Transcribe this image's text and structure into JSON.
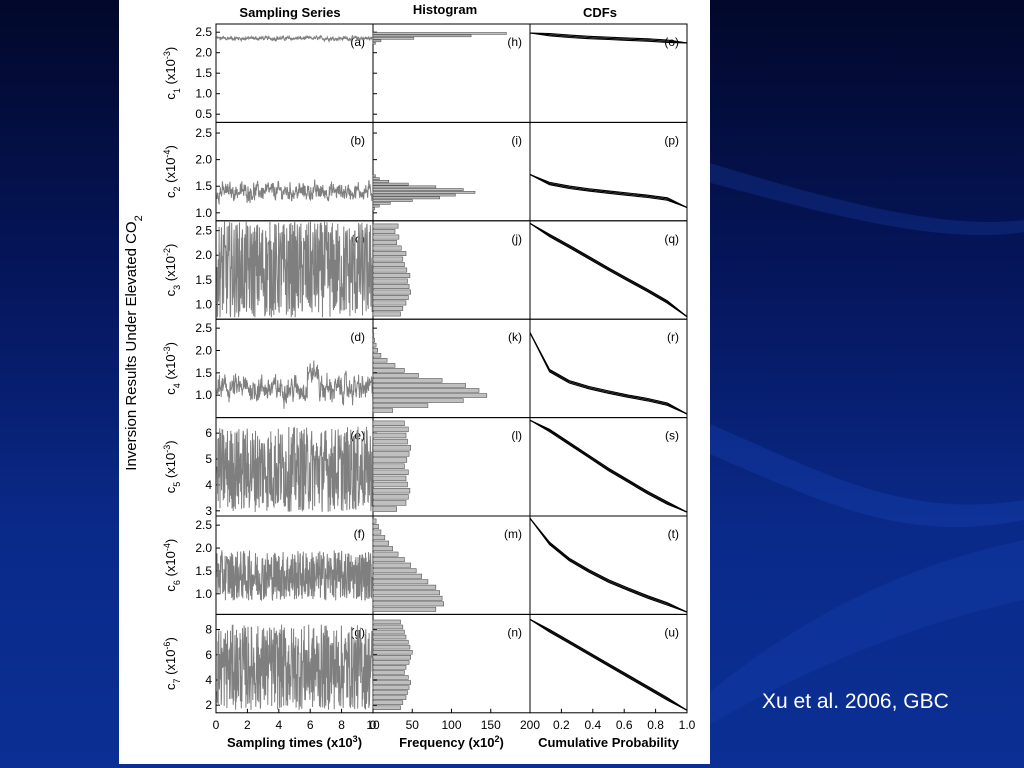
{
  "caption": "Xu et al. 2006, GBC",
  "colors": {
    "background": "#0a2a8a",
    "figure": "#ffffff",
    "trace": "#7f7f7f",
    "bar": "#bfbfbf"
  },
  "chart_data": {
    "type": "panel-grid",
    "column_titles": [
      "Sampling Series",
      "Histogram",
      "CDFs"
    ],
    "row_axis_title": "Inversion Results Under Elevated CO2",
    "x_axes": [
      {
        "label": "Sampling times (x10^3)",
        "ticks": [
          "0",
          "2",
          "4",
          "6",
          "8",
          "10"
        ],
        "range": [
          0,
          10
        ]
      },
      {
        "label": "Frequency (x10^2)",
        "ticks": [
          "0",
          "50",
          "100",
          "150",
          "200"
        ],
        "range": [
          0,
          200
        ]
      },
      {
        "label": "Cumulative Probability",
        "ticks": [
          "0.2",
          "0.4",
          "0.6",
          "0.8",
          "1.0"
        ],
        "range": [
          0,
          1
        ]
      }
    ],
    "rows": [
      {
        "param": "c1",
        "exp": "-3",
        "ylim": [
          0.3,
          2.7
        ],
        "ticks": [
          "0.5",
          "1.0",
          "1.5",
          "2.0",
          "2.5"
        ],
        "letters": [
          "(a)",
          "(h)",
          "(o)"
        ],
        "series_center": 2.35,
        "series_spread": 0.05,
        "hist_values": [
          3,
          10,
          52,
          125,
          170
        ],
        "hist_range": [
          2.2,
          2.5
        ],
        "cdf_y": [
          2.48,
          2.44,
          2.4,
          2.37,
          2.35,
          2.33,
          2.31,
          2.28,
          2.24
        ]
      },
      {
        "param": "c2",
        "exp": "-4",
        "ylim": [
          0.85,
          2.7
        ],
        "ticks": [
          "1.0",
          "1.5",
          "2.0",
          "2.5"
        ],
        "letters": [
          "(b)",
          "(i)",
          "(p)"
        ],
        "series_center": 1.4,
        "series_spread": 0.16,
        "hist_values": [
          2,
          8,
          22,
          50,
          85,
          105,
          130,
          115,
          80,
          45,
          20,
          8,
          3
        ],
        "hist_range": [
          1.05,
          1.72
        ],
        "cdf_y": [
          1.72,
          1.55,
          1.48,
          1.43,
          1.39,
          1.35,
          1.31,
          1.26,
          1.1
        ]
      },
      {
        "param": "c3",
        "exp": "-2",
        "ylim": [
          0.7,
          2.7
        ],
        "ticks": [
          "1.0",
          "1.5",
          "2.0",
          "2.5"
        ],
        "letters": [
          "(c)",
          "(j)",
          "(q)"
        ],
        "series_center": 1.7,
        "series_spread": 1.0,
        "hist_values": [
          35,
          38,
          42,
          45,
          48,
          46,
          44,
          47,
          43,
          40,
          38,
          42,
          36,
          30,
          33,
          28,
          32
        ],
        "hist_range": [
          0.75,
          2.65
        ],
        "cdf_y": [
          2.65,
          2.4,
          2.18,
          1.95,
          1.72,
          1.5,
          1.28,
          1.05,
          0.75
        ]
      },
      {
        "param": "c4",
        "exp": "-3",
        "ylim": [
          0.5,
          2.7
        ],
        "ticks": [
          "1.0",
          "1.5",
          "2.0",
          "2.5"
        ],
        "letters": [
          "(d)",
          "(k)",
          "(r)"
        ],
        "series_center": 1.15,
        "series_spread": 0.28,
        "hist_values": [
          25,
          70,
          115,
          145,
          135,
          118,
          88,
          58,
          40,
          28,
          18,
          10,
          6,
          4,
          2,
          1
        ],
        "hist_range": [
          0.6,
          2.4
        ],
        "cdf_y": [
          2.4,
          1.55,
          1.3,
          1.17,
          1.07,
          0.98,
          0.9,
          0.8,
          0.58
        ]
      },
      {
        "param": "c5",
        "exp": "-3",
        "ylim": [
          2.8,
          6.6
        ],
        "ticks": [
          "3",
          "4",
          "5",
          "6"
        ],
        "letters": [
          "(e)",
          "(l)",
          "(s)"
        ],
        "series_center": 4.6,
        "series_spread": 1.65,
        "hist_values": [
          30,
          42,
          45,
          47,
          44,
          42,
          45,
          40,
          43,
          46,
          48,
          44,
          42,
          45,
          40
        ],
        "hist_range": [
          2.95,
          6.5
        ],
        "cdf_y": [
          6.5,
          6.1,
          5.6,
          5.1,
          4.6,
          4.15,
          3.7,
          3.3,
          2.95
        ]
      },
      {
        "param": "c6",
        "exp": "-4",
        "ylim": [
          0.55,
          2.7
        ],
        "ticks": [
          "1.0",
          "1.5",
          "2.0",
          "2.5"
        ],
        "letters": [
          "(f)",
          "(m)",
          "(t)"
        ],
        "series_center": 1.4,
        "series_spread": 0.55,
        "hist_values": [
          80,
          90,
          88,
          85,
          80,
          70,
          62,
          55,
          48,
          40,
          32,
          25,
          20,
          15,
          10,
          7,
          4
        ],
        "hist_range": [
          0.6,
          2.65
        ],
        "cdf_y": [
          2.65,
          2.1,
          1.75,
          1.5,
          1.28,
          1.1,
          0.93,
          0.78,
          0.6
        ]
      },
      {
        "param": "c7",
        "exp": "-6",
        "ylim": [
          1.4,
          9.2
        ],
        "ticks": [
          "2",
          "4",
          "6",
          "8"
        ],
        "letters": [
          "(g)",
          "(n)",
          "(u)"
        ],
        "series_center": 5.0,
        "series_spread": 3.4,
        "hist_values": [
          35,
          38,
          42,
          44,
          46,
          48,
          45,
          40,
          42,
          46,
          48,
          50,
          47,
          45,
          42,
          40,
          38,
          35
        ],
        "hist_range": [
          1.6,
          8.8
        ],
        "cdf_y": [
          8.8,
          7.9,
          7.0,
          6.1,
          5.2,
          4.3,
          3.4,
          2.5,
          1.6
        ]
      }
    ]
  }
}
